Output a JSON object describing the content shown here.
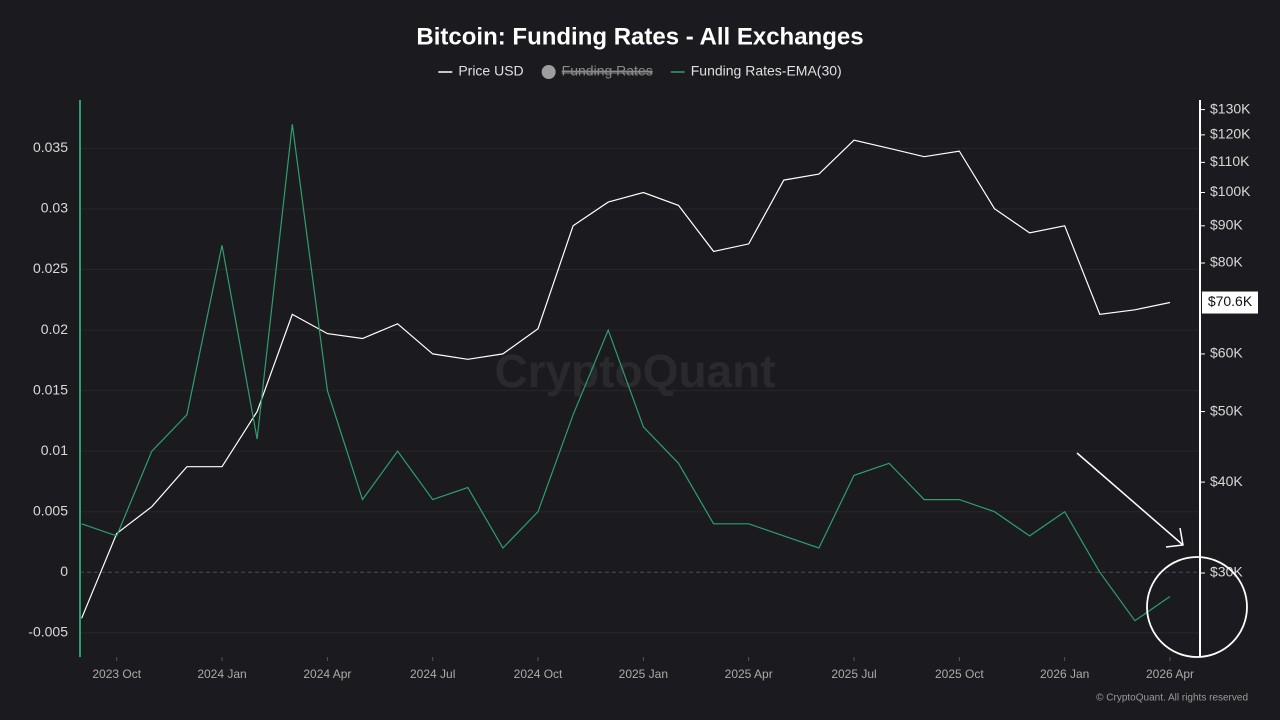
{
  "chart_data": {
    "type": "line",
    "title": "Bitcoin: Funding Rates - All Exchanges",
    "watermark": "CryptoQuant",
    "credit": "© CryptoQuant. All rights reserved",
    "x": [
      null,
      "2023 Oct",
      null,
      null,
      "2024 Jan",
      null,
      null,
      "2024 Apr",
      null,
      null,
      "2024 Jul",
      null,
      null,
      "2024 Oct",
      null,
      null,
      "2025 Jan",
      null,
      null,
      "2025 Apr",
      null,
      null,
      "2025 Jul",
      null,
      null,
      "2025 Oct",
      null,
      null,
      "2026 Jan",
      null,
      null,
      "2026 Apr"
    ],
    "series": [
      {
        "name": "Price USD",
        "color": "#ffffff",
        "axis": "y2",
        "values": [
          26000,
          34000,
          37000,
          42000,
          42000,
          50000,
          68000,
          64000,
          63000,
          66000,
          60000,
          59000,
          60000,
          65000,
          90000,
          97000,
          100000,
          96000,
          83000,
          85000,
          104000,
          106000,
          118000,
          115000,
          112000,
          114000,
          95000,
          88000,
          90000,
          68000,
          69000,
          70600
        ],
        "value_labels": [
          null,
          null,
          null,
          null,
          null,
          null,
          null,
          null,
          null,
          null,
          null,
          null,
          null,
          null,
          null,
          null,
          null,
          null,
          null,
          null,
          null,
          null,
          null,
          null,
          null,
          null,
          null,
          null,
          null,
          null,
          null,
          "$70.6K"
        ]
      },
      {
        "name": "Funding Rates",
        "color": "#9e9e9e",
        "visible": false
      },
      {
        "name": "Funding Rates-EMA(30)",
        "color": "#2e9e6b",
        "values": [
          0.004,
          0.003,
          0.01,
          0.013,
          0.027,
          0.011,
          0.037,
          0.015,
          0.006,
          0.01,
          0.006,
          0.007,
          0.002,
          0.005,
          0.013,
          0.02,
          0.012,
          0.009,
          0.004,
          0.004,
          0.003,
          0.002,
          0.008,
          0.009,
          0.006,
          0.006,
          0.005,
          0.003,
          0.005,
          0,
          -0.004,
          -0.002
        ]
      }
    ],
    "ylim": [
      -0.007,
      0.039
    ],
    "yticks": [
      -0.005,
      0,
      0.005,
      0.01,
      0.015,
      0.02,
      0.025,
      0.03,
      0.035
    ],
    "y2lim": [
      23000,
      134000
    ],
    "y2log": true,
    "y2ticks": [
      {
        "value": 30000,
        "label": "$30K"
      },
      {
        "value": 40000,
        "label": "$40K"
      },
      {
        "value": 50000,
        "label": "$50K"
      },
      {
        "value": 60000,
        "label": "$60K"
      },
      {
        "value": 80000,
        "label": "$80K"
      },
      {
        "value": 90000,
        "label": "$90K"
      },
      {
        "value": 100000,
        "label": "$100K"
      },
      {
        "value": 110000,
        "label": "$110K"
      },
      {
        "value": 120000,
        "label": "$120K"
      },
      {
        "value": 130000,
        "label": "$130K"
      }
    ],
    "grid": true
  }
}
